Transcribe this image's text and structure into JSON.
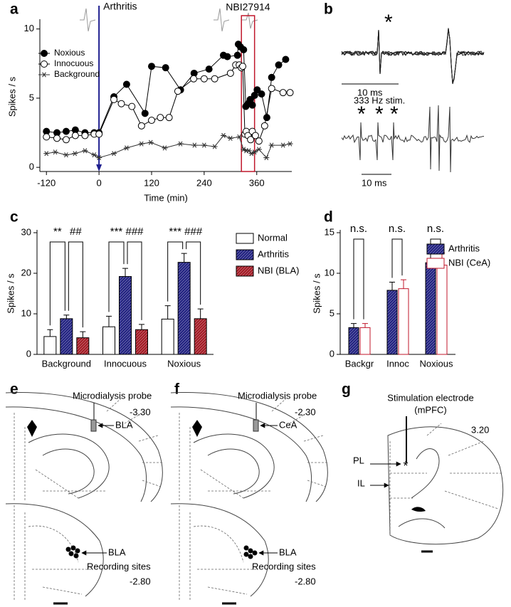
{
  "panel_labels": [
    "a",
    "b",
    "c",
    "d",
    "e",
    "f",
    "g"
  ],
  "chart_data": [
    {
      "type": "line",
      "xlabel": "Time (min)",
      "ylabel": "Spikes / s",
      "xlim": [
        -135,
        440
      ],
      "ylim": [
        -0.3,
        10.5
      ],
      "xticks": [
        -120,
        0,
        120,
        240,
        360
      ],
      "yticks": [
        0,
        5,
        10
      ],
      "legend": "upper left",
      "series": [
        {
          "name": "Noxious",
          "marker": "filled-circle",
          "color": "#000000",
          "x": [
            -120,
            -96,
            -75,
            -54,
            -32,
            -11,
            0,
            34,
            63,
            105,
            120,
            152,
            186,
            217,
            251,
            284,
            293,
            316,
            318,
            323,
            330,
            335,
            340,
            345,
            350,
            355,
            361,
            371,
            383,
            394,
            410,
            426
          ],
          "values": [
            2.6,
            2.5,
            2.6,
            2.7,
            2.5,
            2.5,
            2.5,
            5.1,
            6.0,
            3.9,
            7.3,
            7.2,
            5.6,
            6.8,
            7.1,
            8.1,
            8.0,
            8.1,
            8.9,
            8.7,
            8.5,
            4.4,
            4.6,
            4.9,
            4.5,
            5.2,
            5.6,
            5.3,
            3.6,
            6.5,
            7.4,
            7.8
          ]
        },
        {
          "name": "Innocuous",
          "marker": "open-circle",
          "color": "#000000",
          "x": [
            -120,
            -96,
            -75,
            -54,
            -32,
            -11,
            0,
            34,
            51,
            75,
            97,
            120,
            140,
            160,
            180,
            216,
            240,
            264,
            300,
            312,
            320,
            325,
            328,
            333,
            336,
            340,
            346,
            350,
            357,
            365,
            378,
            394,
            420,
            436
          ],
          "values": [
            2.2,
            2.1,
            2.0,
            2.3,
            2.3,
            2.4,
            2.4,
            4.9,
            4.6,
            4.4,
            3.0,
            3.4,
            3.6,
            3.6,
            5.5,
            6.4,
            6.4,
            6.4,
            6.8,
            7.4,
            7.4,
            7.2,
            7.3,
            2.4,
            2.6,
            2.3,
            2.0,
            2.6,
            2.3,
            1.9,
            3.0,
            5.7,
            5.4,
            5.4
          ]
        },
        {
          "name": "Background",
          "marker": "asterisk",
          "color": "#333333",
          "x": [
            -120,
            -100,
            -75,
            -55,
            -32,
            -11,
            0,
            34,
            63,
            97,
            118,
            150,
            186,
            218,
            240,
            264,
            284,
            300,
            320,
            330,
            336,
            342,
            348,
            355,
            365,
            382,
            394,
            420,
            436
          ],
          "values": [
            1.0,
            1.1,
            0.9,
            1.0,
            1.2,
            0.9,
            0.7,
            1.0,
            1.4,
            1.7,
            1.8,
            1.4,
            1.7,
            1.6,
            1.6,
            1.5,
            2.3,
            2.1,
            2.2,
            1.3,
            1.2,
            1.2,
            1.0,
            1.1,
            1.3,
            0.7,
            1.6,
            1.6,
            1.7
          ]
        }
      ],
      "annotations": [
        {
          "text": "Arthritis",
          "x": 0,
          "color": "#1f1f8f"
        },
        {
          "text": "NBI27914",
          "xrange": [
            325,
            355
          ],
          "color": "#c0172b"
        }
      ]
    },
    {
      "type": "bar",
      "ylabel": "Spikes / s",
      "ylim": [
        0,
        30
      ],
      "yticks": [
        0,
        10,
        20,
        30
      ],
      "categories": [
        "Background",
        "Innocuous",
        "Noxious"
      ],
      "legend": "right",
      "series": [
        {
          "name": "Normal",
          "color": "#ffffff",
          "edge": "#000000",
          "hatch": false,
          "values": [
            4.4,
            6.8,
            8.7
          ],
          "errors": [
            1.7,
            2.6,
            3.3
          ]
        },
        {
          "name": "Arthritis",
          "color": "#1b1b7d",
          "edge": "#000000",
          "hatch": true,
          "values": [
            8.8,
            19.2,
            22.7
          ],
          "errors": [
            0.9,
            2.0,
            2.2
          ]
        },
        {
          "name": "NBI (BLA)",
          "color": "#a0141e",
          "edge": "#000000",
          "hatch": true,
          "values": [
            4.1,
            6.1,
            8.8
          ],
          "errors": [
            1.5,
            1.3,
            2.4
          ]
        }
      ],
      "significance": [
        [
          "**",
          "##"
        ],
        [
          "***",
          "###"
        ],
        [
          "***",
          "###"
        ]
      ]
    },
    {
      "type": "bar",
      "ylabel": "Spikes / s",
      "ylim": [
        0,
        15
      ],
      "yticks": [
        0,
        5,
        10,
        15
      ],
      "categories": [
        "Backgr",
        "Innoc",
        "Noxious"
      ],
      "legend": "upper right",
      "series": [
        {
          "name": "Arthritis",
          "color": "#1b1b7d",
          "edge": "#000000",
          "hatch": true,
          "values": [
            3.3,
            7.9,
            11.3
          ],
          "errors": [
            0.5,
            1.0,
            1.5
          ]
        },
        {
          "name": "NBI (CeA)",
          "color": "#ffffff",
          "edge": "#c0172b",
          "hatch": false,
          "values": [
            3.3,
            8.1,
            11.0
          ],
          "errors": [
            0.5,
            1.1,
            1.5
          ]
        }
      ],
      "significance": [
        [
          "n.s."
        ],
        [
          "n.s."
        ],
        [
          "n.s."
        ]
      ]
    }
  ],
  "traces": {
    "star_top": "*",
    "scale_top": "10 ms",
    "stim_label": "333 Hz stim.",
    "stim_stars": [
      "*",
      "*",
      "*"
    ],
    "scale_bottom": "10 ms"
  },
  "sections": [
    {
      "probe_label": "Microdialysis probe",
      "level_top": "-3.30",
      "target": "BLA",
      "recording_target": "BLA",
      "recording_label": "Recording sites",
      "level_bottom": "-2.80"
    },
    {
      "probe_label": "Microdialysis probe",
      "level_top": "-2.30",
      "target": "CeA",
      "recording_target": "BLA",
      "recording_label": "Recording sites",
      "level_bottom": "-2.80"
    },
    {
      "electrode_label": "Stimulation electrode",
      "electrode_sub": "(mPFC)",
      "level": "3.20",
      "site_marker": "*",
      "labels": [
        "PL",
        "IL"
      ]
    }
  ]
}
